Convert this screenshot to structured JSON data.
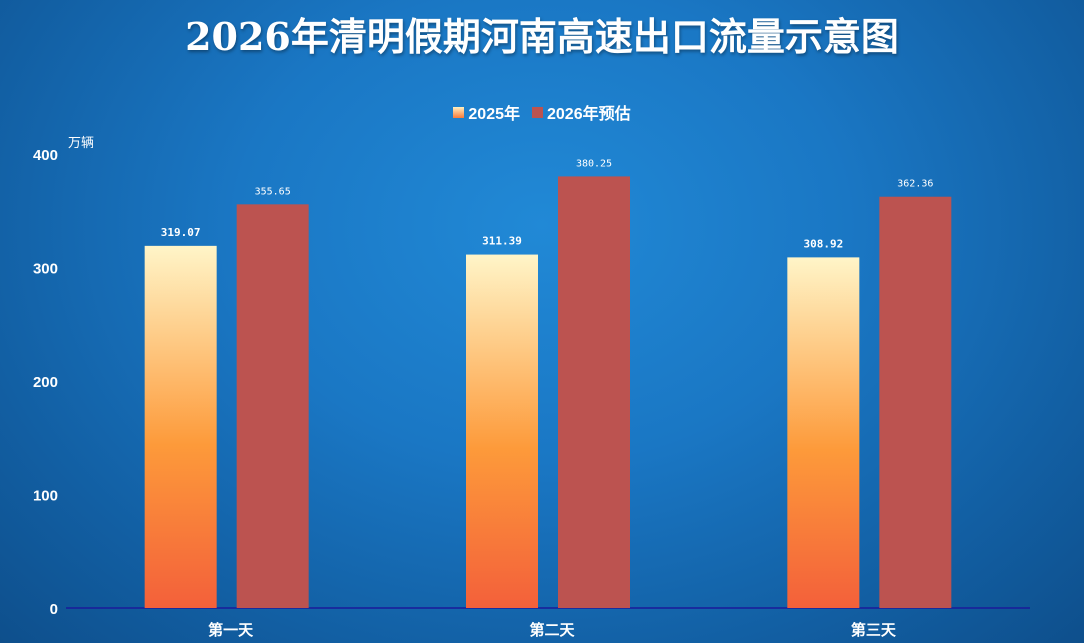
{
  "chart_data": {
    "type": "bar",
    "title": "2026年清明假期河南高速出口流量示意图",
    "ylabel": "万辆",
    "xlabel": "",
    "ylim": [
      0,
      400
    ],
    "yticks": [
      0,
      100,
      200,
      300,
      400
    ],
    "categories": [
      "第一天",
      "第二天",
      "第三天"
    ],
    "series": [
      {
        "name": "2025年",
        "values": [
          319.07,
          311.39,
          308.92
        ],
        "labels": [
          "319.07",
          "311.39",
          "308.92"
        ],
        "color": "#f97a3a"
      },
      {
        "name": "2026年预估",
        "values": [
          355.65,
          380.25,
          362.36
        ],
        "labels": [
          "355.65",
          "380.25",
          "362.36"
        ],
        "color": "#bc5350"
      }
    ],
    "legend_position": "top-center",
    "grid": false,
    "axis_color": "#1a1a9a",
    "gradient_top": "#fff5c8",
    "gradient_mid": "#fd9a3a",
    "gradient_bottom": "#f3603a"
  }
}
